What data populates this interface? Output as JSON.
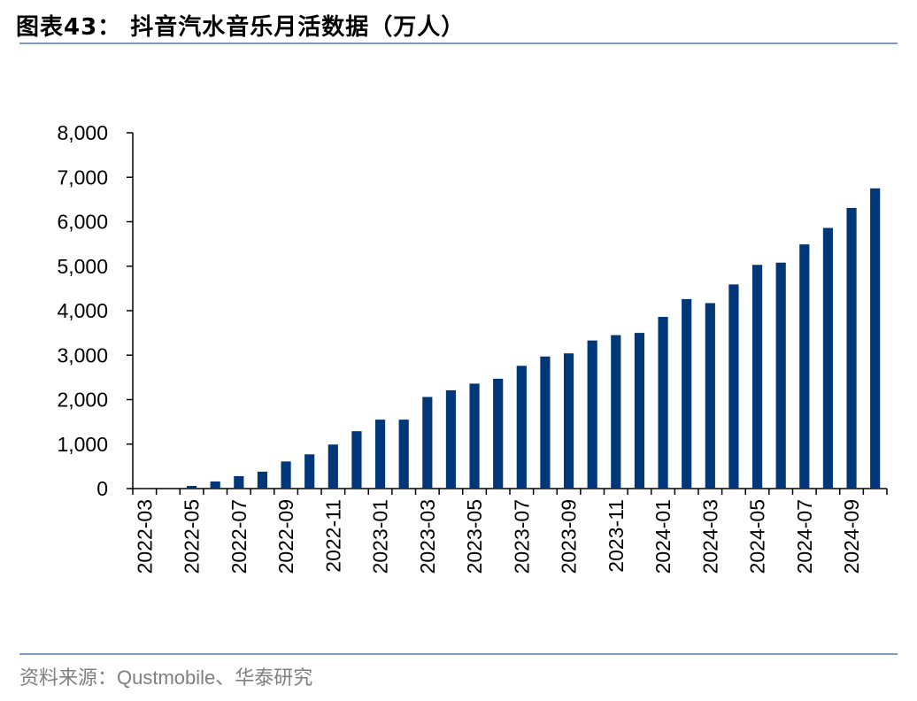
{
  "title": "图表43： 抖音汽水音乐月活数据（万人）",
  "source": "资料来源：Qustmobile、华泰研究",
  "chart_data": {
    "type": "bar",
    "title": "抖音汽水音乐月活数据（万人）",
    "xlabel": "",
    "ylabel": "",
    "ylim": [
      0,
      8000
    ],
    "y_ticks": [
      0,
      1000,
      2000,
      3000,
      4000,
      5000,
      6000,
      7000,
      8000
    ],
    "y_tick_labels": [
      "0",
      "1,000",
      "2,000",
      "3,000",
      "4,000",
      "5,000",
      "6,000",
      "7,000",
      "8,000"
    ],
    "grid": false,
    "legend": "none",
    "bar_color": "#003778",
    "categories": [
      "2022-03",
      "2022-04",
      "2022-05",
      "2022-06",
      "2022-07",
      "2022-08",
      "2022-09",
      "2022-10",
      "2022-11",
      "2022-12",
      "2023-01",
      "2023-02",
      "2023-03",
      "2023-04",
      "2023-05",
      "2023-06",
      "2023-07",
      "2023-08",
      "2023-09",
      "2023-10",
      "2023-11",
      "2023-12",
      "2024-01",
      "2024-02",
      "2024-03",
      "2024-04",
      "2024-05",
      "2024-06",
      "2024-07",
      "2024-08",
      "2024-09",
      "2024-10"
    ],
    "x_tick_labels": [
      "2022-03",
      "2022-05",
      "2022-07",
      "2022-09",
      "2022-11",
      "2023-01",
      "2023-03",
      "2023-05",
      "2023-07",
      "2023-09",
      "2023-11",
      "2024-01",
      "2024-03",
      "2024-05",
      "2024-07",
      "2024-09"
    ],
    "values": [
      5,
      15,
      60,
      160,
      280,
      380,
      610,
      770,
      990,
      1290,
      1550,
      1550,
      2060,
      2210,
      2360,
      2470,
      2760,
      2970,
      3040,
      3330,
      3450,
      3500,
      3860,
      4260,
      4170,
      4590,
      5030,
      5080,
      5490,
      5860,
      6310,
      6750
    ]
  }
}
